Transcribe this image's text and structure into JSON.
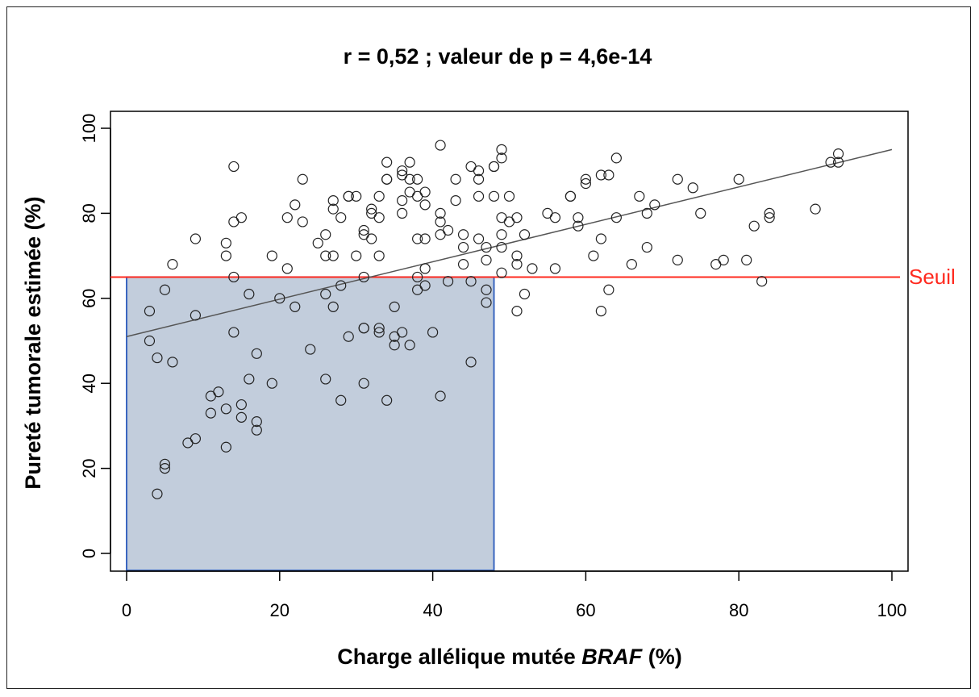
{
  "chart_data": {
    "type": "scatter",
    "title": "r = 0,52 ; valeur de p = 4,6e-14",
    "xlabel_main": "Charge allélique mutée ",
    "xlabel_italic": "BRAF",
    "xlabel_suffix": " (%)",
    "ylabel": "Pureté tumorale estimée (%)",
    "xlim": [
      0,
      100
    ],
    "ylim": [
      0,
      100
    ],
    "xticks": [
      "0",
      "20",
      "40",
      "60",
      "80",
      "100"
    ],
    "yticks": [
      "0",
      "20",
      "40",
      "60",
      "80",
      "100"
    ],
    "threshold": {
      "label": "Seuil",
      "y": 65,
      "color": "#ff2a1f"
    },
    "regression": {
      "x": [
        0,
        100
      ],
      "y": [
        51,
        95
      ],
      "color": "#555555"
    },
    "highlight_box": {
      "x0": 0,
      "x1": 48,
      "y0": -4,
      "y1": 65,
      "fill": "#b7c4d6",
      "stroke": "#3a66c0"
    },
    "points": [
      [
        3,
        57
      ],
      [
        3,
        50
      ],
      [
        4,
        46
      ],
      [
        4,
        14
      ],
      [
        5,
        62
      ],
      [
        5,
        21
      ],
      [
        5,
        20
      ],
      [
        6,
        68
      ],
      [
        6,
        45
      ],
      [
        8,
        26
      ],
      [
        9,
        74
      ],
      [
        9,
        56
      ],
      [
        9,
        27
      ],
      [
        11,
        37
      ],
      [
        11,
        33
      ],
      [
        12,
        38
      ],
      [
        13,
        73
      ],
      [
        13,
        70
      ],
      [
        13,
        34
      ],
      [
        13,
        25
      ],
      [
        14,
        91
      ],
      [
        14,
        78
      ],
      [
        14,
        65
      ],
      [
        14,
        52
      ],
      [
        15,
        79
      ],
      [
        15,
        35
      ],
      [
        15,
        32
      ],
      [
        16,
        61
      ],
      [
        16,
        41
      ],
      [
        17,
        47
      ],
      [
        17,
        31
      ],
      [
        17,
        29
      ],
      [
        19,
        70
      ],
      [
        19,
        40
      ],
      [
        20,
        60
      ],
      [
        21,
        79
      ],
      [
        21,
        67
      ],
      [
        22,
        82
      ],
      [
        22,
        58
      ],
      [
        23,
        88
      ],
      [
        23,
        78
      ],
      [
        24,
        48
      ],
      [
        25,
        73
      ],
      [
        26,
        75
      ],
      [
        26,
        70
      ],
      [
        26,
        61
      ],
      [
        26,
        41
      ],
      [
        27,
        83
      ],
      [
        27,
        81
      ],
      [
        27,
        70
      ],
      [
        27,
        58
      ],
      [
        28,
        79
      ],
      [
        28,
        63
      ],
      [
        28,
        36
      ],
      [
        29,
        84
      ],
      [
        29,
        84
      ],
      [
        29,
        51
      ],
      [
        30,
        84
      ],
      [
        30,
        70
      ],
      [
        31,
        76
      ],
      [
        31,
        75
      ],
      [
        31,
        65
      ],
      [
        31,
        53
      ],
      [
        31,
        53
      ],
      [
        31,
        40
      ],
      [
        32,
        74
      ],
      [
        32,
        81
      ],
      [
        32,
        80
      ],
      [
        33,
        84
      ],
      [
        33,
        79
      ],
      [
        33,
        70
      ],
      [
        33,
        53
      ],
      [
        33,
        52
      ],
      [
        34,
        92
      ],
      [
        34,
        88
      ],
      [
        34,
        88
      ],
      [
        34,
        36
      ],
      [
        35,
        58
      ],
      [
        35,
        51
      ],
      [
        35,
        49
      ],
      [
        36,
        90
      ],
      [
        36,
        89
      ],
      [
        36,
        80
      ],
      [
        36,
        83
      ],
      [
        36,
        52
      ],
      [
        37,
        92
      ],
      [
        37,
        88
      ],
      [
        37,
        85
      ],
      [
        37,
        49
      ],
      [
        38,
        88
      ],
      [
        38,
        84
      ],
      [
        38,
        74
      ],
      [
        38,
        65
      ],
      [
        38,
        62
      ],
      [
        39,
        85
      ],
      [
        39,
        82
      ],
      [
        39,
        74
      ],
      [
        39,
        67
      ],
      [
        39,
        63
      ],
      [
        40,
        52
      ],
      [
        41,
        96
      ],
      [
        41,
        80
      ],
      [
        41,
        78
      ],
      [
        41,
        75
      ],
      [
        41,
        37
      ],
      [
        42,
        76
      ],
      [
        42,
        64
      ],
      [
        43,
        88
      ],
      [
        43,
        83
      ],
      [
        44,
        75
      ],
      [
        44,
        72
      ],
      [
        44,
        68
      ],
      [
        45,
        91
      ],
      [
        45,
        64
      ],
      [
        45,
        45
      ],
      [
        46,
        90
      ],
      [
        46,
        88
      ],
      [
        46,
        84
      ],
      [
        46,
        74
      ],
      [
        47,
        72
      ],
      [
        47,
        69
      ],
      [
        47,
        62
      ],
      [
        47,
        59
      ],
      [
        48,
        91
      ],
      [
        48,
        91
      ],
      [
        48,
        84
      ],
      [
        49,
        95
      ],
      [
        49,
        93
      ],
      [
        49,
        79
      ],
      [
        49,
        75
      ],
      [
        49,
        72
      ],
      [
        49,
        66
      ],
      [
        50,
        84
      ],
      [
        50,
        78
      ],
      [
        51,
        79
      ],
      [
        51,
        70
      ],
      [
        51,
        68
      ],
      [
        51,
        57
      ],
      [
        52,
        75
      ],
      [
        52,
        61
      ],
      [
        53,
        67
      ],
      [
        55,
        80
      ],
      [
        56,
        79
      ],
      [
        56,
        67
      ],
      [
        58,
        84
      ],
      [
        58,
        84
      ],
      [
        59,
        79
      ],
      [
        59,
        77
      ],
      [
        60,
        88
      ],
      [
        60,
        87
      ],
      [
        61,
        70
      ],
      [
        62,
        89
      ],
      [
        62,
        74
      ],
      [
        62,
        57
      ],
      [
        63,
        89
      ],
      [
        63,
        62
      ],
      [
        64,
        93
      ],
      [
        64,
        79
      ],
      [
        66,
        68
      ],
      [
        67,
        84
      ],
      [
        68,
        80
      ],
      [
        68,
        72
      ],
      [
        69,
        82
      ],
      [
        72,
        88
      ],
      [
        72,
        69
      ],
      [
        74,
        86
      ],
      [
        75,
        80
      ],
      [
        77,
        68
      ],
      [
        78,
        69
      ],
      [
        80,
        88
      ],
      [
        81,
        69
      ],
      [
        82,
        77
      ],
      [
        83,
        64
      ],
      [
        84,
        80
      ],
      [
        84,
        79
      ],
      [
        90,
        81
      ],
      [
        92,
        92
      ],
      [
        93,
        94
      ],
      [
        93,
        92
      ]
    ]
  }
}
